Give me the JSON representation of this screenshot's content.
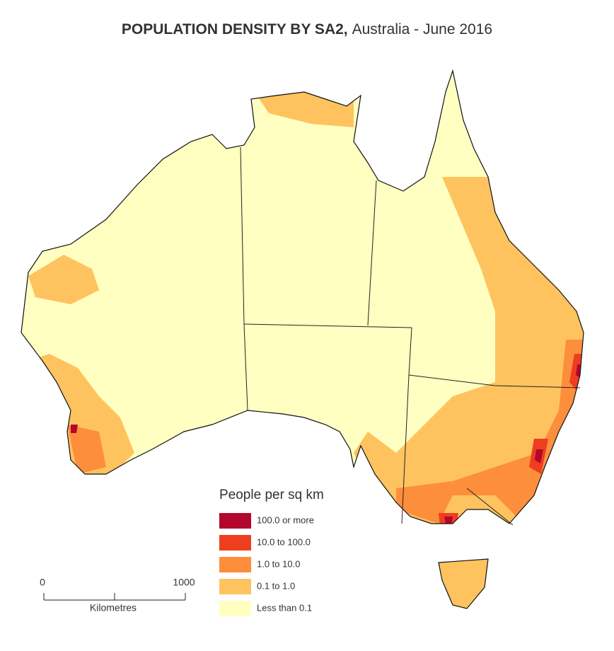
{
  "header": {
    "title_bold": "POPULATION DENSITY BY SA2,",
    "title_rest": "Australia - June 2016"
  },
  "legend": {
    "title": "People per sq km",
    "items": [
      {
        "label": "100.0 or more",
        "color": "#b3072b"
      },
      {
        "label": "10.0 to 100.0",
        "color": "#ef3e1f"
      },
      {
        "label": "1.0 to 10.0",
        "color": "#fd8e3c"
      },
      {
        "label": "0.1 to 1.0",
        "color": "#fec35f"
      },
      {
        "label": "Less than 0.1",
        "color": "#ffffc1"
      }
    ]
  },
  "scale_bar": {
    "start_label": "0",
    "end_label": "1000",
    "unit": "Kilometres"
  }
}
